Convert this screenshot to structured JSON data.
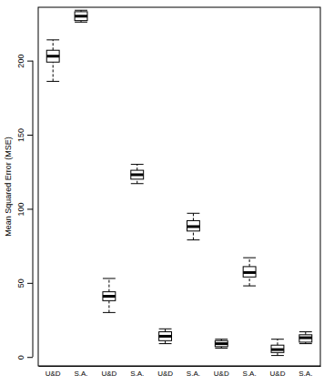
{
  "chart_data": {
    "type": "box",
    "y_label": "Mean Squared Error (MSE)",
    "categories": [
      "U&D",
      "S.A.",
      "U&D",
      "S.A.",
      "U&D",
      "S.A.",
      "U&D",
      "S.A.",
      "U&D",
      "S.A."
    ],
    "min": [
      186,
      226,
      30,
      117,
      9,
      79,
      6,
      48,
      1,
      9
    ],
    "q1": [
      199,
      227,
      38,
      120,
      11,
      85,
      7,
      54,
      3,
      10
    ],
    "median": [
      203,
      230,
      41,
      123,
      14,
      88,
      9,
      57,
      5,
      13
    ],
    "q3": [
      207,
      233,
      44,
      126,
      17,
      92,
      11,
      61,
      8,
      15
    ],
    "max": [
      214,
      234,
      53,
      130,
      19,
      97,
      12,
      67,
      12,
      17
    ],
    "ylim": [
      -6,
      236
    ],
    "yticks": [
      0,
      50,
      100,
      150,
      200
    ]
  }
}
